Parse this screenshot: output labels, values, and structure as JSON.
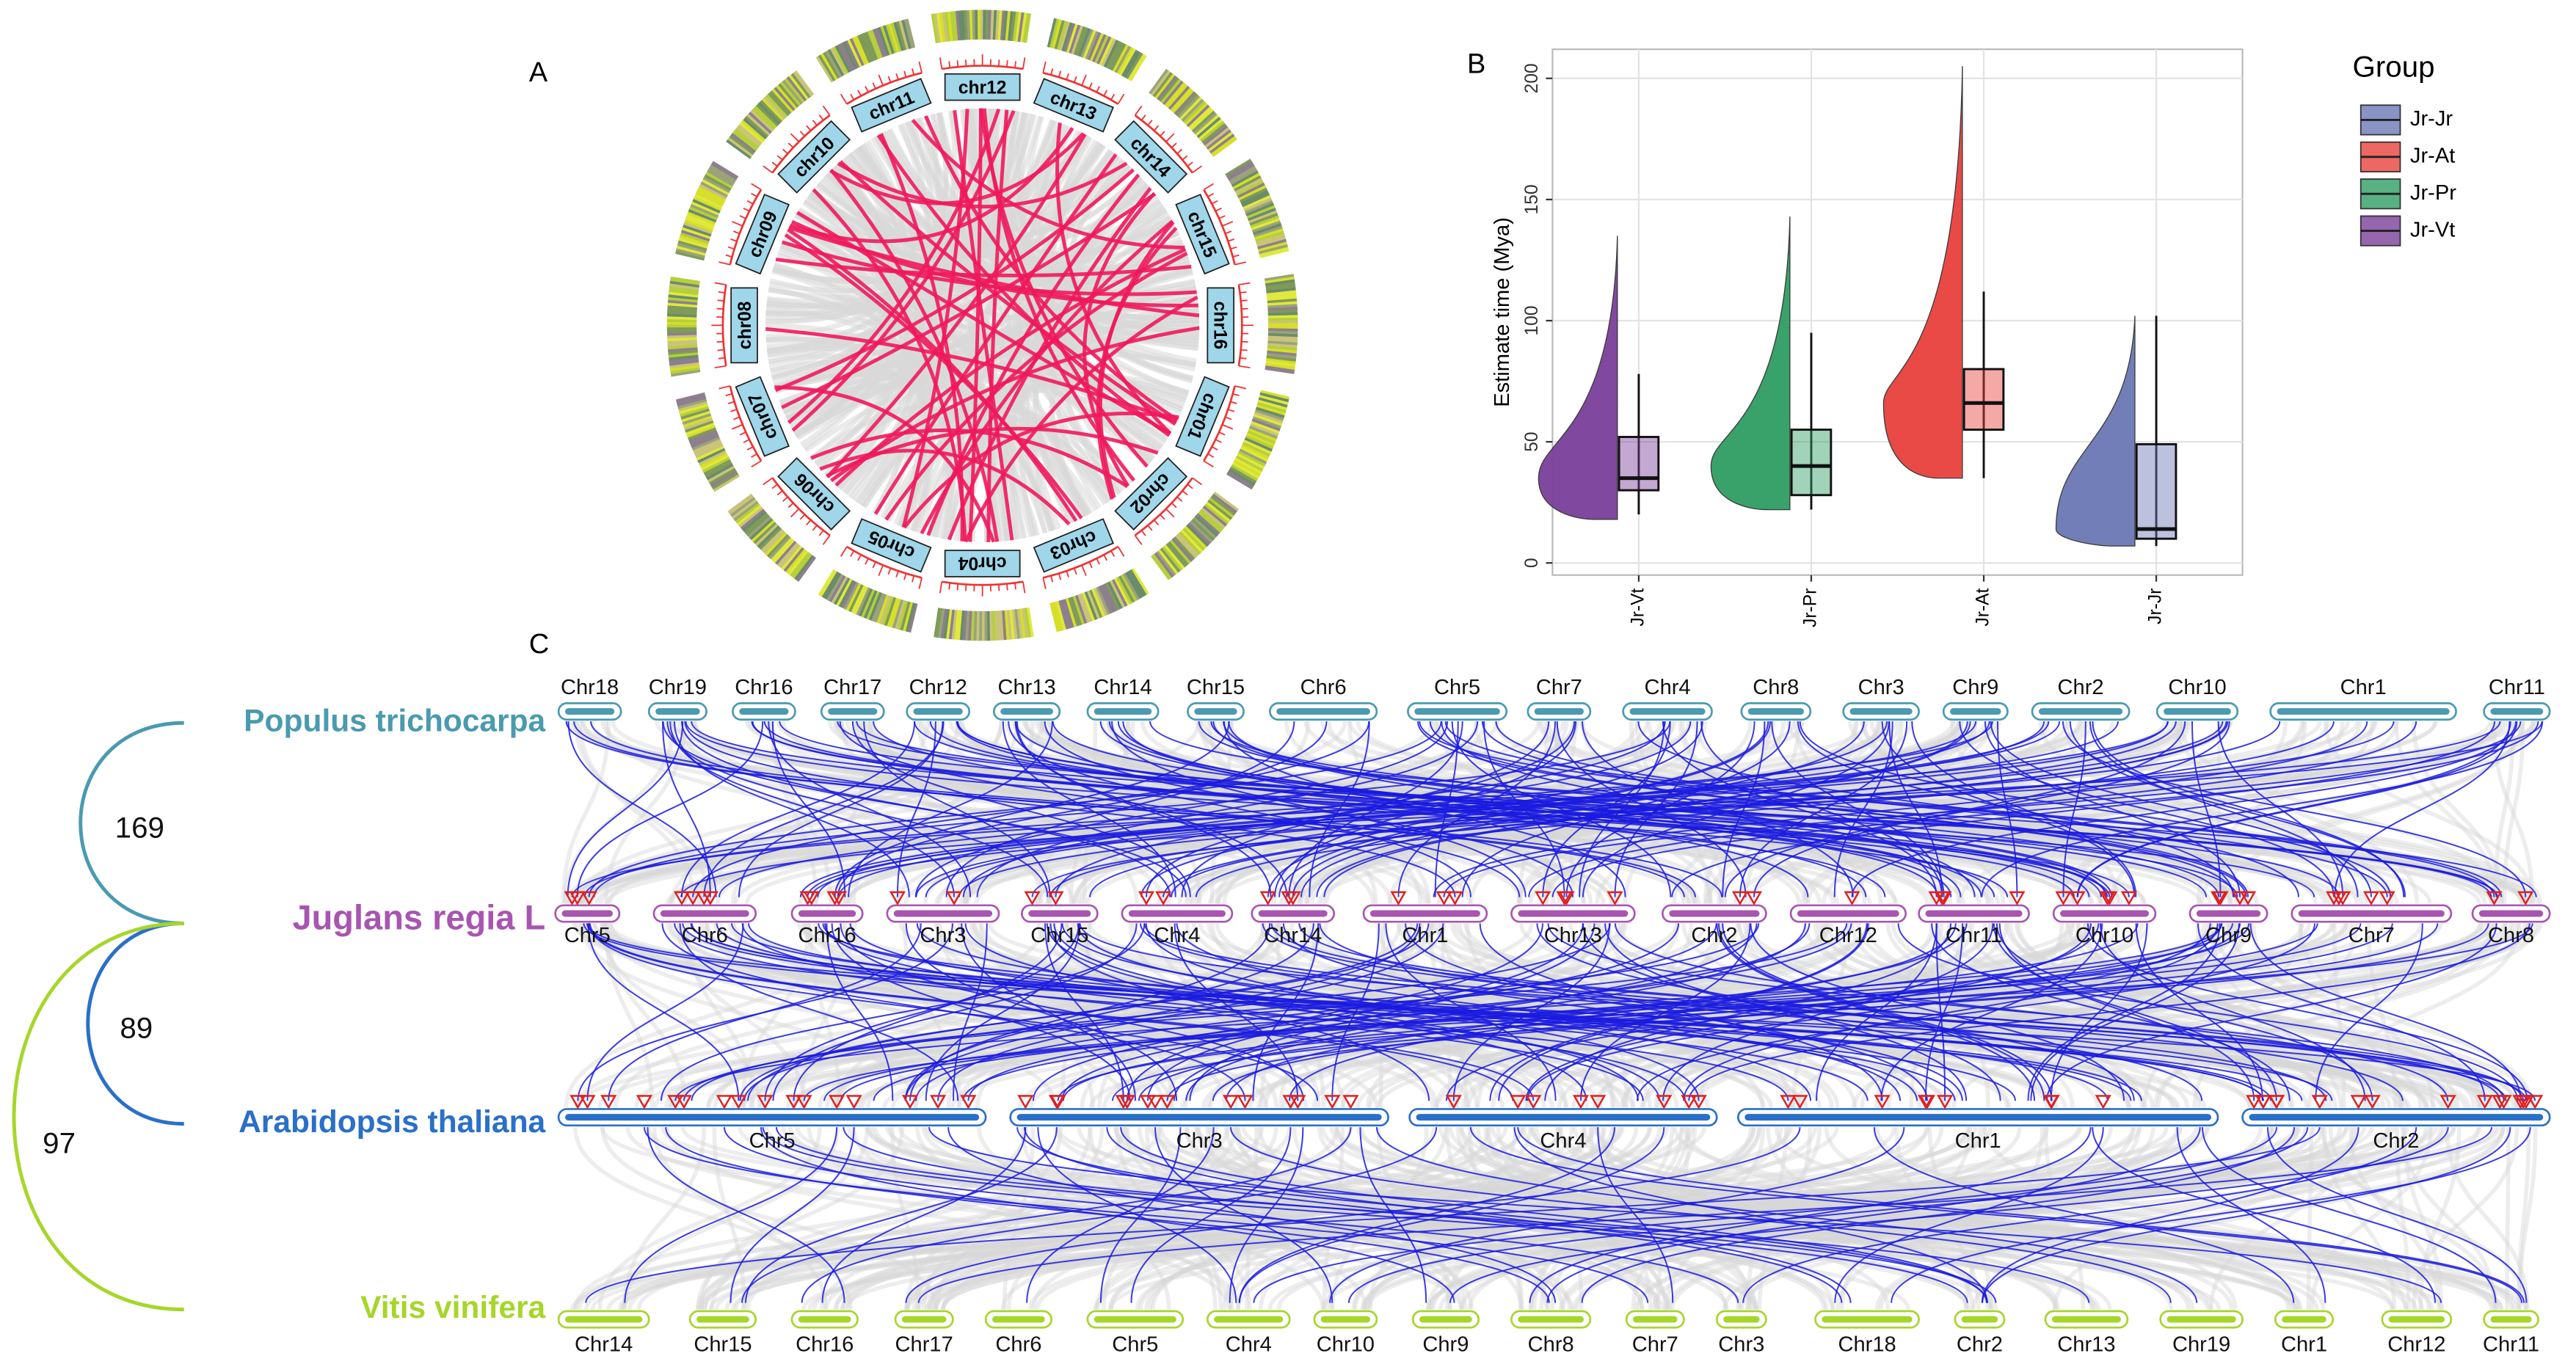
{
  "panel_labels": [
    "A",
    "B",
    "C"
  ],
  "circos": {
    "chromosomes": [
      "chr12",
      "chr13",
      "chr14",
      "chr15",
      "chr16",
      "chr01",
      "chr02",
      "chr03",
      "chr04",
      "chr05",
      "chr06",
      "chr07",
      "chr08",
      "chr09",
      "chr10",
      "chr11"
    ]
  },
  "chart_data": {
    "type": "raincloud",
    "y_label": "Estimate time (Mya)",
    "categories": [
      "Jr-Vt",
      "Jr-Pr",
      "Jr-At",
      "Jr-Jr"
    ],
    "colors": [
      "#7b3f9a",
      "#2e9e63",
      "#e8413c",
      "#6b78b5"
    ],
    "boxes": [
      {
        "min": 18,
        "whisker_low": 20,
        "q1": 30,
        "median": 35,
        "q3": 52,
        "whisker_high": 78,
        "max": 135
      },
      {
        "min": 22,
        "whisker_low": 22,
        "q1": 28,
        "median": 40,
        "q3": 55,
        "whisker_high": 95,
        "max": 143
      },
      {
        "min": 35,
        "whisker_low": 35,
        "q1": 55,
        "median": 66,
        "q3": 80,
        "whisker_high": 112,
        "max": 205
      },
      {
        "min": 7,
        "whisker_low": 7,
        "q1": 10,
        "median": 14,
        "q3": 49,
        "whisker_high": 102,
        "max": 102
      }
    ],
    "ylim": [
      -5,
      212
    ],
    "yticks": [
      0,
      50,
      100,
      150,
      200
    ],
    "grid": true,
    "legend": {
      "title": "Group",
      "items": [
        {
          "name": "Jr-Jr",
          "color": "#6b78b5"
        },
        {
          "name": "Jr-At",
          "color": "#e8413c"
        },
        {
          "name": "Jr-Pr",
          "color": "#2e9e63"
        },
        {
          "name": "Jr-Vt",
          "color": "#7b3f9a"
        }
      ]
    }
  },
  "synteny": {
    "rows": [
      {
        "species": "Populus trichocarpa",
        "color": "#4a9ab0",
        "chromosomes": [
          "Chr18",
          "Chr19",
          "Chr16",
          "Chr17",
          "Chr12",
          "Chr13",
          "Chr14",
          "Chr15",
          "Chr6",
          "Chr5",
          "Chr7",
          "Chr4",
          "Chr8",
          "Chr3",
          "Chr9",
          "Chr2",
          "Chr10",
          "Chr1",
          "Chr11"
        ]
      },
      {
        "species": "Juglans regia L",
        "color": "#a855b0",
        "chromosomes": [
          "Chr5",
          "Chr6",
          "Chr16",
          "Chr3",
          "Chr15",
          "Chr4",
          "Chr14",
          "Chr1",
          "Chr13",
          "Chr2",
          "Chr12",
          "Chr11",
          "Chr10",
          "Chr9",
          "Chr7",
          "Chr8"
        ]
      },
      {
        "species": "Arabidopsis thaliana",
        "color": "#2a6fc9",
        "chromosomes": [
          "Chr5",
          "Chr3",
          "Chr4",
          "Chr1",
          "Chr2"
        ]
      },
      {
        "species": "Vitis vinifera",
        "color": "#a6d62a",
        "chromosomes": [
          "Chr14",
          "Chr15",
          "Chr16",
          "Chr17",
          "Chr6",
          "Chr5",
          "Chr4",
          "Chr10",
          "Chr9",
          "Chr8",
          "Chr7",
          "Chr3",
          "Chr18",
          "Chr2",
          "Chr13",
          "Chr19",
          "Chr1",
          "Chr12",
          "Chr11"
        ]
      }
    ],
    "tree_values": [
      169,
      89,
      97
    ]
  }
}
